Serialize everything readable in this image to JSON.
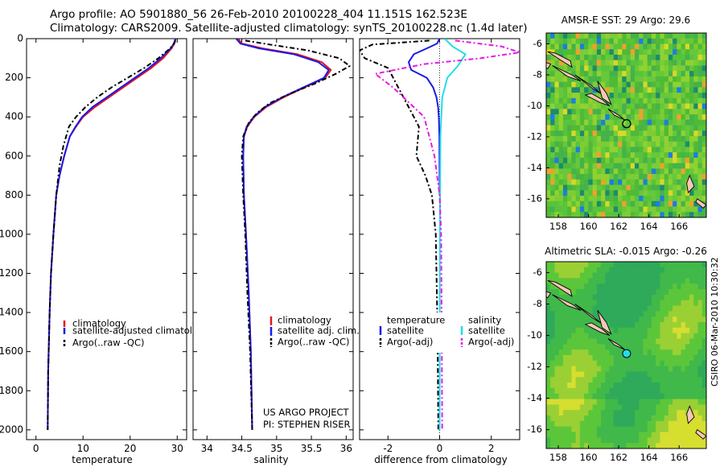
{
  "figure": {
    "title_line1": "Argo profile: AO 5901880_56 26-Feb-2010 20100228_404 11.151S 162.523E",
    "title_line2": "Climatology: CARS2009. Satellite-adjusted climatology: synTS_20100228.nc (1.4d later)",
    "credit": "CSIRO 06-Mar-2010 10:30:32",
    "project_line1": "US ARGO PROJECT",
    "project_line2": "PI: STEPHEN RISER",
    "colors": {
      "climatology": "#e8131b",
      "satellite": "#1a1ae6",
      "argo": "#000000",
      "salinity_satellite": "#22dde8",
      "salinity_argo": "#e61ae6"
    }
  },
  "chart_data": [
    {
      "type": "line",
      "panel": "temperature",
      "xlabel": "temperature",
      "ylabel": "",
      "xlim": [
        -2,
        32
      ],
      "ylim": [
        2050,
        0
      ],
      "xticks": [
        0,
        10,
        20,
        30
      ],
      "yticks": [
        0,
        200,
        400,
        600,
        800,
        1000,
        1200,
        1400,
        1600,
        1800,
        2000
      ],
      "y_inverted": true,
      "legend": [
        "climatology",
        "satellite-adjusted climatology",
        "Argo(..raw -QC)"
      ],
      "legend_position": "lower-right",
      "series": [
        {
          "name": "climatology",
          "style": "solid",
          "x": [
            29.7,
            29.4,
            28.8,
            27,
            24.5,
            21.5,
            18.5,
            15.5,
            12.5,
            10,
            8.5,
            7.2,
            6,
            5,
            4.3,
            3.7,
            3.2,
            2.9,
            2.6,
            2.5
          ],
          "y": [
            0,
            25,
            50,
            100,
            150,
            200,
            250,
            300,
            350,
            400,
            450,
            500,
            600,
            700,
            800,
            1000,
            1200,
            1400,
            1700,
            2000
          ]
        },
        {
          "name": "satellite-adjusted climatology",
          "style": "solid",
          "x": [
            29.6,
            29.3,
            28.6,
            26.5,
            24,
            21,
            18,
            15,
            12,
            9.8,
            8.4,
            7.2,
            6,
            5,
            4.3,
            3.7,
            3.2,
            2.9,
            2.6,
            2.5
          ],
          "y": [
            0,
            25,
            50,
            100,
            150,
            200,
            250,
            300,
            350,
            400,
            450,
            500,
            600,
            700,
            800,
            1000,
            1200,
            1400,
            1700,
            2000
          ]
        },
        {
          "name": "Argo(..raw -QC)",
          "style": "dashed",
          "x": [
            29.6,
            29.3,
            28.5,
            26,
            23,
            19.5,
            16,
            13,
            10.5,
            8.5,
            7,
            5.8,
            5,
            4.3,
            3.7,
            3.2,
            2.9,
            2.6,
            2.5
          ],
          "y": [
            10,
            25,
            50,
            100,
            150,
            200,
            250,
            300,
            350,
            400,
            450,
            550,
            650,
            800,
            1000,
            1200,
            1400,
            1700,
            2000
          ]
        }
      ]
    },
    {
      "type": "line",
      "panel": "salinity",
      "xlabel": "salinity",
      "ylabel": "",
      "xlim": [
        33.8,
        36.1
      ],
      "ylim": [
        2050,
        0
      ],
      "xticks": [
        34,
        34.5,
        35,
        35.5,
        36
      ],
      "y_inverted": true,
      "legend": [
        "climatology",
        "satellite adj. clim.",
        "Argo(..raw -QC)"
      ],
      "legend_position": "lower-right",
      "series": [
        {
          "name": "climatology",
          "style": "solid",
          "x": [
            34.45,
            34.5,
            34.8,
            35.3,
            35.65,
            35.78,
            35.7,
            35.4,
            35.1,
            34.85,
            34.68,
            34.58,
            34.53,
            34.52,
            34.53,
            34.56,
            34.6,
            34.63,
            34.65
          ],
          "y": [
            0,
            25,
            50,
            80,
            120,
            160,
            200,
            250,
            300,
            350,
            400,
            450,
            500,
            600,
            800,
            1000,
            1300,
            1600,
            2000
          ]
        },
        {
          "name": "satellite adj. clim.",
          "style": "solid",
          "x": [
            34.42,
            34.48,
            34.75,
            35.25,
            35.6,
            35.75,
            35.68,
            35.38,
            35.08,
            34.83,
            34.67,
            34.57,
            34.53,
            34.52,
            34.53,
            34.56,
            34.6,
            34.63,
            34.65
          ],
          "y": [
            0,
            25,
            50,
            80,
            120,
            160,
            200,
            250,
            300,
            350,
            400,
            450,
            500,
            600,
            800,
            1000,
            1300,
            1600,
            2000
          ]
        },
        {
          "name": "Argo(..raw -QC)",
          "style": "dashed",
          "x": [
            34.55,
            34.9,
            35.45,
            35.9,
            36.05,
            35.85,
            35.55,
            35.2,
            34.9,
            34.72,
            34.6,
            34.52,
            34.5,
            34.52,
            34.55,
            34.58,
            34.62,
            34.65
          ],
          "y": [
            10,
            30,
            60,
            100,
            140,
            180,
            230,
            280,
            330,
            380,
            430,
            500,
            600,
            800,
            1000,
            1300,
            1600,
            2000
          ]
        }
      ]
    },
    {
      "type": "line",
      "panel": "difference",
      "xlabel": "difference from climatology",
      "ylabel": "",
      "xlim": [
        -3.1,
        3.1
      ],
      "ylim": [
        2050,
        0
      ],
      "xticks": [
        -2,
        0,
        2
      ],
      "y_inverted": true,
      "legend_headers": [
        "temperature",
        "salinity"
      ],
      "legend": [
        "satellite",
        "Argo(-adj)",
        "satellite",
        "Argo(-adj)"
      ],
      "legend_position": "lower-center",
      "series": [
        {
          "name": "temperature satellite",
          "style": "solid",
          "color": "#1a1ae6",
          "x": [
            0,
            -0.1,
            -0.5,
            -1.0,
            -1.2,
            -1.1,
            -0.5,
            -0.25,
            -0.12,
            -0.06,
            -0.03,
            -0.01,
            0
          ],
          "y": [
            0,
            25,
            50,
            80,
            120,
            160,
            200,
            250,
            300,
            350,
            400,
            500,
            800
          ]
        },
        {
          "name": "temperature Argo(-adj)",
          "style": "dashed",
          "color": "#000000",
          "x": [
            -0.4,
            -1.5,
            -2.6,
            -3.1,
            -2.9,
            -2.0,
            -1.6,
            -1.2,
            -0.8,
            -0.9,
            -0.55,
            -0.3,
            -0.15,
            -0.08,
            -0.05
          ],
          "y": [
            10,
            20,
            30,
            60,
            100,
            150,
            250,
            350,
            450,
            600,
            700,
            800,
            1000,
            1500,
            2000
          ]
        },
        {
          "name": "salinity satellite",
          "style": "solid",
          "color": "#22dde8",
          "x": [
            0.2,
            0.5,
            1.0,
            0.7,
            0.3,
            0.1,
            0.03,
            0.01,
            0
          ],
          "y": [
            0,
            40,
            80,
            140,
            200,
            300,
            500,
            1000,
            2000
          ]
        },
        {
          "name": "salinity Argo(-adj)",
          "style": "dashed",
          "color": "#e61ae6",
          "x": [
            0.6,
            2.4,
            3.1,
            1.6,
            -0.6,
            -2.5,
            -1.8,
            -0.6,
            -0.2,
            0,
            0.06,
            0.08,
            0.1
          ],
          "y": [
            10,
            40,
            70,
            100,
            130,
            180,
            250,
            400,
            600,
            800,
            1000,
            1500,
            2000
          ]
        }
      ]
    },
    {
      "type": "heatmap",
      "panel": "sst_map",
      "title": "AMSR-E SST: 29 Argo: 29.6",
      "xlim": [
        157.2,
        167.8
      ],
      "ylim": [
        -17.2,
        -5.3
      ],
      "xticks": [
        158,
        160,
        162,
        164,
        166
      ],
      "yticks": [
        -6,
        -8,
        -10,
        -12,
        -14,
        -16
      ],
      "profile_marker": {
        "lon": 162.523,
        "lat": -11.151
      }
    },
    {
      "type": "heatmap",
      "panel": "sla_map",
      "title": "Altimetric SLA: -0.015 Argo: -0.26",
      "xlim": [
        157.2,
        167.8
      ],
      "ylim": [
        -17.2,
        -5.3
      ],
      "xticks": [
        158,
        160,
        162,
        164,
        166
      ],
      "yticks": [
        -6,
        -8,
        -10,
        -12,
        -14,
        -16
      ],
      "profile_marker": {
        "lon": 162.523,
        "lat": -11.151
      }
    }
  ]
}
